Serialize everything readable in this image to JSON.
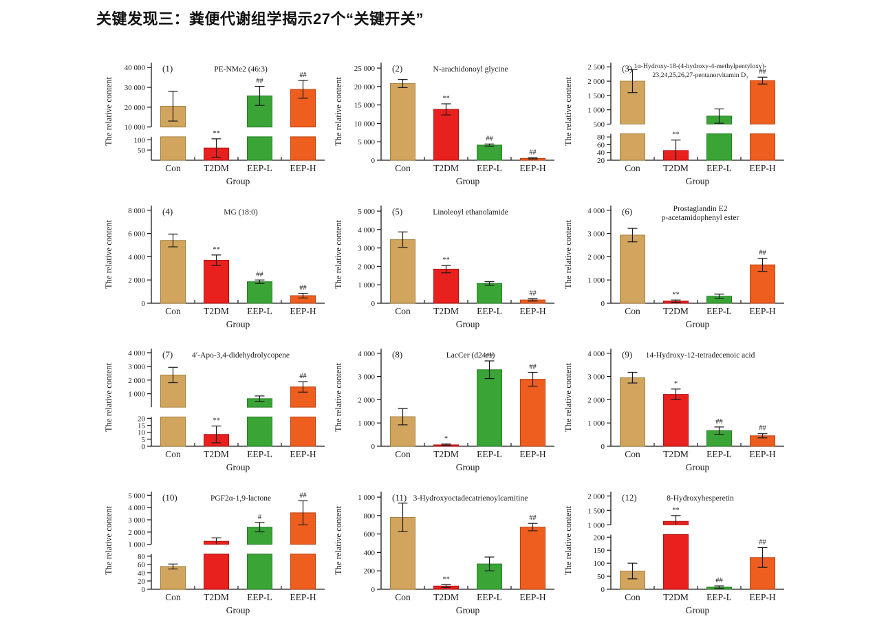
{
  "page": {
    "title": "关键发现三：粪便代谢组学揭示27个“关键开关”"
  },
  "chart_data": {
    "type": "bar",
    "categories": [
      "Con",
      "T2DM",
      "EEP-L",
      "EEP-H"
    ],
    "xlabel": "Group",
    "ylabel": "The relative content",
    "legend_position": "none",
    "grid": false,
    "colors": {
      "fills": [
        "#D2A55E",
        "#E8201E",
        "#3AA437",
        "#ED5E1F"
      ],
      "strokes": [
        "#A5813F",
        "#B01314",
        "#277E25",
        "#BC4312"
      ],
      "axis": "#1a1a1a",
      "error_bar": "#1a1a1a",
      "marker_text": "#333333"
    },
    "panels": [
      {
        "num": "(1)",
        "title": [
          "PE-NMe2 (46:3)"
        ],
        "values": [
          20500,
          60,
          25700,
          29000
        ],
        "errors": [
          7500,
          45,
          4800,
          4500
        ],
        "markers": [
          "",
          "**",
          "##",
          "##"
        ],
        "broken": true,
        "lower": {
          "min": 0,
          "max": 115,
          "frac": 0.24,
          "ticks": [
            [
              50,
              "50"
            ],
            [
              100,
              "100"
            ]
          ]
        },
        "upper": {
          "min": 10000,
          "max": 42500,
          "frac": 0.66,
          "ticks": [
            [
              10000,
              "10 000"
            ],
            [
              20000,
              "20 000"
            ],
            [
              30000,
              "30 000"
            ],
            [
              40000,
              "40 000"
            ]
          ]
        }
      },
      {
        "num": "(2)",
        "title": [
          "N-arachidonoyl glycine"
        ],
        "values": [
          20800,
          13800,
          4100,
          500
        ],
        "errors": [
          1100,
          1500,
          300,
          150
        ],
        "markers": [
          "",
          "**",
          "##",
          "##"
        ],
        "axis": {
          "min": 0,
          "max": 26500,
          "ticks": [
            [
              0,
              "0"
            ],
            [
              5000,
              "5 000"
            ],
            [
              10000,
              "10 000"
            ],
            [
              15000,
              "15 000"
            ],
            [
              20000,
              "20 000"
            ],
            [
              25000,
              "25 000"
            ]
          ]
        }
      },
      {
        "num": "(3)",
        "title": [
          "1α-Hydroxy-18-(4-hydroxy-4-methylpentyloxy)-",
          "23,24,25,26,27-pentanorvitamin D₃"
        ],
        "title_size": 9.8,
        "values": [
          2000,
          45,
          780,
          2020
        ],
        "errors": [
          400,
          27,
          250,
          120
        ],
        "markers": [
          "",
          "**",
          "",
          "##"
        ],
        "broken": true,
        "lower": {
          "min": 20,
          "max": 88,
          "frac": 0.27,
          "ticks": [
            [
              20,
              "20"
            ],
            [
              40,
              "40"
            ],
            [
              60,
              "60"
            ],
            [
              80,
              "80"
            ]
          ]
        },
        "upper": {
          "min": 500,
          "max": 2650,
          "frac": 0.63,
          "ticks": [
            [
              500,
              "500"
            ],
            [
              1000,
              "1 000"
            ],
            [
              1500,
              "1 500"
            ],
            [
              2000,
              "2 000"
            ],
            [
              2500,
              "2 500"
            ]
          ]
        }
      },
      {
        "num": "(4)",
        "title": [
          "MG (18:0)"
        ],
        "values": [
          5400,
          3700,
          1850,
          650
        ],
        "errors": [
          550,
          450,
          150,
          200
        ],
        "markers": [
          "",
          "**",
          "##",
          "##"
        ],
        "axis": {
          "min": 0,
          "max": 8400,
          "ticks": [
            [
              0,
              "0"
            ],
            [
              2000,
              "2 000"
            ],
            [
              4000,
              "4 000"
            ],
            [
              6000,
              "6 000"
            ],
            [
              8000,
              "8 000"
            ]
          ]
        }
      },
      {
        "num": "(5)",
        "title": [
          "Linoleoyl ethanolamide"
        ],
        "values": [
          3450,
          1850,
          1070,
          180
        ],
        "errors": [
          420,
          200,
          100,
          60
        ],
        "markers": [
          "",
          "**",
          "",
          "##"
        ],
        "axis": {
          "min": 0,
          "max": 5300,
          "ticks": [
            [
              0,
              "0"
            ],
            [
              1000,
              "1 000"
            ],
            [
              2000,
              "2 000"
            ],
            [
              3000,
              "3 000"
            ],
            [
              4000,
              "4 000"
            ],
            [
              5000,
              "5 000"
            ]
          ]
        }
      },
      {
        "num": "(6)",
        "title": [
          "Prostaglandin E2",
          "p-acetamidophenyl ester"
        ],
        "values": [
          2930,
          90,
          300,
          1650
        ],
        "errors": [
          290,
          50,
          90,
          280
        ],
        "markers": [
          "",
          "**",
          "",
          "##"
        ],
        "axis": {
          "min": 0,
          "max": 4200,
          "ticks": [
            [
              0,
              "0"
            ],
            [
              1000,
              "1 000"
            ],
            [
              2000,
              "2 000"
            ],
            [
              3000,
              "3 000"
            ],
            [
              4000,
              "4 000"
            ]
          ]
        }
      },
      {
        "num": "(7)",
        "title": [
          "4′-Apo-3,4-didehydrolycopene"
        ],
        "values": [
          2370,
          8.5,
          640,
          1500
        ],
        "errors": [
          560,
          6,
          200,
          380
        ],
        "markers": [
          "",
          "**",
          "",
          "##"
        ],
        "broken": true,
        "lower": {
          "min": 0,
          "max": 21,
          "frac": 0.3,
          "ticks": [
            [
              0,
              "0"
            ],
            [
              5,
              "5"
            ],
            [
              10,
              "10"
            ],
            [
              15,
              "15"
            ],
            [
              20,
              "20"
            ]
          ]
        },
        "upper": {
          "min": 20,
          "max": 4300,
          "frac": 0.6,
          "ticks": [
            [
              1000,
              "1 000"
            ],
            [
              2000,
              "2 000"
            ],
            [
              3000,
              "3 000"
            ],
            [
              4000,
              "4 000"
            ]
          ]
        }
      },
      {
        "num": "(8)",
        "title": [
          "LacCer (d24:1)"
        ],
        "values": [
          1270,
          60,
          3290,
          2880
        ],
        "errors": [
          350,
          35,
          380,
          300
        ],
        "markers": [
          "",
          "*",
          "##",
          "##"
        ],
        "axis": {
          "min": 0,
          "max": 4200,
          "ticks": [
            [
              0,
              "0"
            ],
            [
              1000,
              "1 000"
            ],
            [
              2000,
              "2 000"
            ],
            [
              3000,
              "3 000"
            ],
            [
              4000,
              "4 000"
            ]
          ]
        }
      },
      {
        "num": "(9)",
        "title": [
          "14-Hydroxy-12-tetradecenoic acid"
        ],
        "values": [
          2950,
          2230,
          670,
          450
        ],
        "errors": [
          230,
          230,
          160,
          90
        ],
        "markers": [
          "",
          "*",
          "##",
          "##"
        ],
        "axis": {
          "min": 0,
          "max": 4200,
          "ticks": [
            [
              0,
              "0"
            ],
            [
              1000,
              "1 000"
            ],
            [
              2000,
              "2 000"
            ],
            [
              3000,
              "3 000"
            ],
            [
              4000,
              "4 000"
            ]
          ]
        }
      },
      {
        "num": "(10)",
        "title": [
          "PGF2α-1,9-lactone"
        ],
        "values": [
          55,
          1250,
          2400,
          3570
        ],
        "errors": [
          6,
          280,
          380,
          980
        ],
        "markers": [
          "",
          "",
          "#",
          "##"
        ],
        "broken": true,
        "lower": {
          "min": 0,
          "max": 85,
          "frac": 0.36,
          "ticks": [
            [
              0,
              "0"
            ],
            [
              20,
              "20"
            ],
            [
              40,
              "40"
            ],
            [
              60,
              "60"
            ],
            [
              80,
              "80"
            ]
          ]
        },
        "upper": {
          "min": 1000,
          "max": 5300,
          "frac": 0.54,
          "ticks": [
            [
              1000,
              "1 000"
            ],
            [
              2000,
              "2 000"
            ],
            [
              3000,
              "3 000"
            ],
            [
              4000,
              "4 000"
            ],
            [
              5000,
              "5 000"
            ]
          ]
        }
      },
      {
        "num": "(11)",
        "title": [
          "3-Hydroxyoctadecatrienoylcarnitine"
        ],
        "values": [
          780,
          35,
          275,
          675
        ],
        "errors": [
          155,
          15,
          75,
          40
        ],
        "markers": [
          "",
          "**",
          "",
          "##"
        ],
        "axis": {
          "min": 0,
          "max": 1060,
          "ticks": [
            [
              0,
              "0"
            ],
            [
              200,
              "200"
            ],
            [
              400,
              "400"
            ],
            [
              600,
              "600"
            ],
            [
              800,
              "800"
            ],
            [
              1000,
              "1 000"
            ]
          ]
        }
      },
      {
        "num": "(12)",
        "title": [
          "8-Hydroxyhesperetin"
        ],
        "values": [
          70,
          1120,
          8,
          122
        ],
        "errors": [
          30,
          200,
          5,
          38
        ],
        "markers": [
          "",
          "**",
          "##",
          "##"
        ],
        "broken": true,
        "lower": {
          "min": 0,
          "max": 210,
          "frac": 0.56,
          "ticks": [
            [
              0,
              "0"
            ],
            [
              50,
              "50"
            ],
            [
              100,
              "100"
            ],
            [
              150,
              "150"
            ],
            [
              200,
              "200"
            ]
          ]
        },
        "upper": {
          "min": 1000,
          "max": 2150,
          "frac": 0.34,
          "ticks": [
            [
              1000,
              "1 000"
            ],
            [
              1500,
              "1 500"
            ],
            [
              2000,
              "2 000"
            ]
          ]
        }
      }
    ]
  }
}
